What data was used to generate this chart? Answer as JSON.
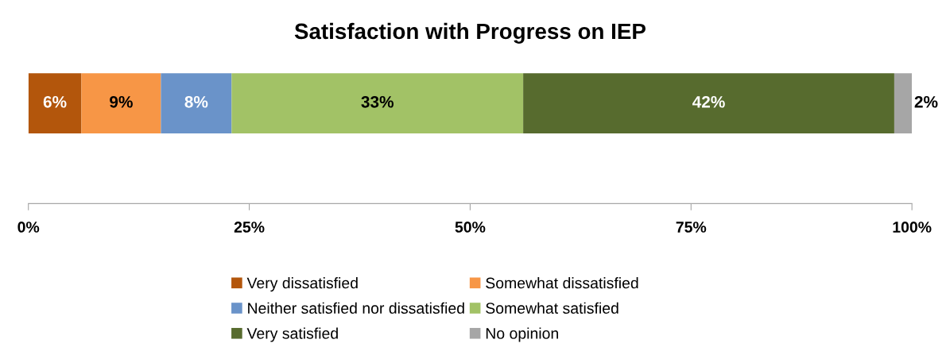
{
  "chart_data": {
    "type": "bar",
    "title": "Satisfaction with Progress on IEP",
    "orientation": "horizontal",
    "stacked": true,
    "categories": [
      null
    ],
    "series": [
      {
        "name": "Very dissatisfied",
        "color": "#b3560c",
        "values": [
          6
        ],
        "value_labels": [
          "6%"
        ]
      },
      {
        "name": "Somewhat dissatisfied",
        "color": "#f79646",
        "values": [
          9
        ],
        "value_labels": [
          "9%"
        ]
      },
      {
        "name": "Neither satisfied nor dissatisfied",
        "color": "#6a93c9",
        "values": [
          8
        ],
        "value_labels": [
          "8%"
        ]
      },
      {
        "name": "Somewhat satisfied",
        "color": "#a2c266",
        "values": [
          33
        ],
        "value_labels": [
          "33%"
        ]
      },
      {
        "name": "Very satisfied",
        "color": "#576b2e",
        "values": [
          42
        ],
        "value_labels": [
          "42%"
        ]
      },
      {
        "name": "No opinion",
        "color": "#a6a6a6",
        "values": [
          2
        ],
        "value_labels": [
          "2%"
        ]
      }
    ],
    "xlim": [
      0,
      100
    ],
    "xticks": [
      {
        "value": 0,
        "label": "0%"
      },
      {
        "value": 25,
        "label": "25%"
      },
      {
        "value": 50,
        "label": "50%"
      },
      {
        "value": 75,
        "label": "75%"
      },
      {
        "value": 100,
        "label": "100%"
      }
    ],
    "tick_labels": "x",
    "legend": "bottom",
    "grid": false
  }
}
